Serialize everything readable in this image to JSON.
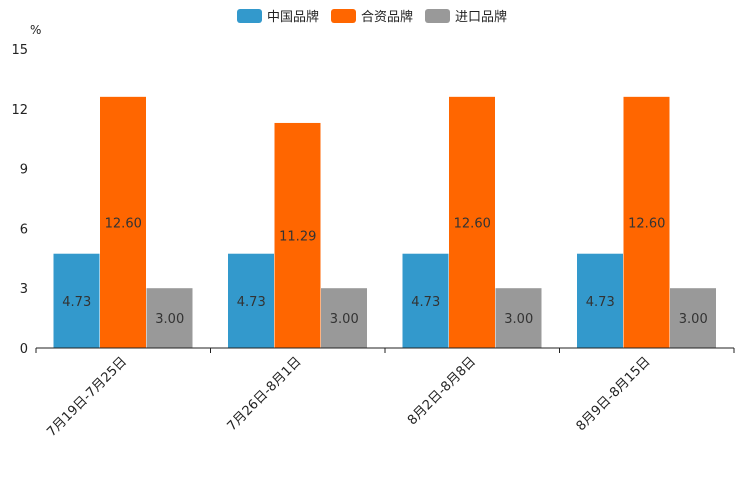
{
  "chart_data": {
    "type": "bar",
    "title": "",
    "xlabel": "",
    "ylabel": "%",
    "ylim": [
      0,
      15
    ],
    "yticks": [
      0,
      3,
      6,
      9,
      12,
      15
    ],
    "grid": false,
    "legend_position": "top-center",
    "categories": [
      "7月19日-7月25日",
      "7月26日-8月1日",
      "8月2日-8月8日",
      "8月9日-8月15日"
    ],
    "series": [
      {
        "name": "中国品牌",
        "color": "#3399cc",
        "values": [
          4.73,
          4.73,
          4.73,
          4.73
        ],
        "labels": [
          "4.73",
          "4.73",
          "4.73",
          "4.73"
        ]
      },
      {
        "name": "合资品牌",
        "color": "#ff6600",
        "values": [
          12.6,
          11.29,
          12.6,
          12.6
        ],
        "labels": [
          "12.60",
          "11.29",
          "12.60",
          "12.60"
        ]
      },
      {
        "name": "进口品牌",
        "color": "#999999",
        "values": [
          3.0,
          3.0,
          3.0,
          3.0
        ],
        "labels": [
          "3.00",
          "3.00",
          "3.00",
          "3.00"
        ]
      }
    ]
  }
}
